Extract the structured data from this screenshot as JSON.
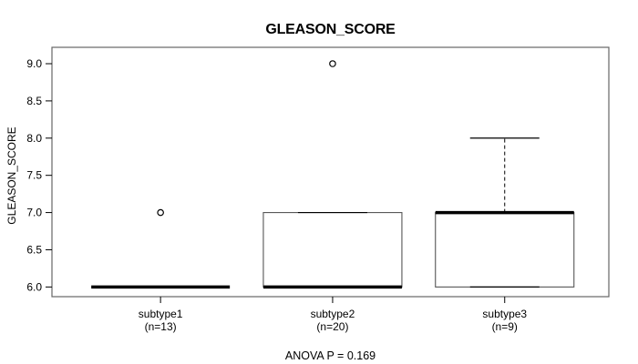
{
  "chart_data": {
    "type": "boxplot",
    "title": "GLEASON_SCORE",
    "y_axis_label": "GLEASON_SCORE",
    "xlabel": "",
    "footer": "ANOVA P = 0.169",
    "ylim": [
      5.87,
      9.22
    ],
    "yticks": [
      6.0,
      6.5,
      7.0,
      7.5,
      8.0,
      8.5,
      9.0
    ],
    "ytick_labels": [
      "6.0",
      "6.5",
      "7.0",
      "7.5",
      "8.0",
      "8.5",
      "9.0"
    ],
    "grid": false,
    "colors": {
      "background": "#ffffff",
      "plot_border": "#666666",
      "box_border": "#555555",
      "line": "#000000",
      "text": "#000000"
    },
    "groups": [
      {
        "label": "subtype1",
        "count_label": "(n=13)",
        "n": 13,
        "whisker_low": 6.0,
        "q1": 6.0,
        "median": 6.0,
        "q3": 6.0,
        "whisker_high": 6.0,
        "outliers": [
          7.0
        ]
      },
      {
        "label": "subtype2",
        "count_label": "(n=20)",
        "n": 20,
        "whisker_low": 6.0,
        "q1": 6.0,
        "median": 6.0,
        "q3": 7.0,
        "whisker_high": 7.0,
        "outliers": [
          9.0
        ]
      },
      {
        "label": "subtype3",
        "count_label": "(n=9)",
        "n": 9,
        "whisker_low": 6.0,
        "q1": 6.0,
        "median": 7.0,
        "q3": 7.0,
        "whisker_high": 8.0,
        "outliers": []
      }
    ]
  }
}
